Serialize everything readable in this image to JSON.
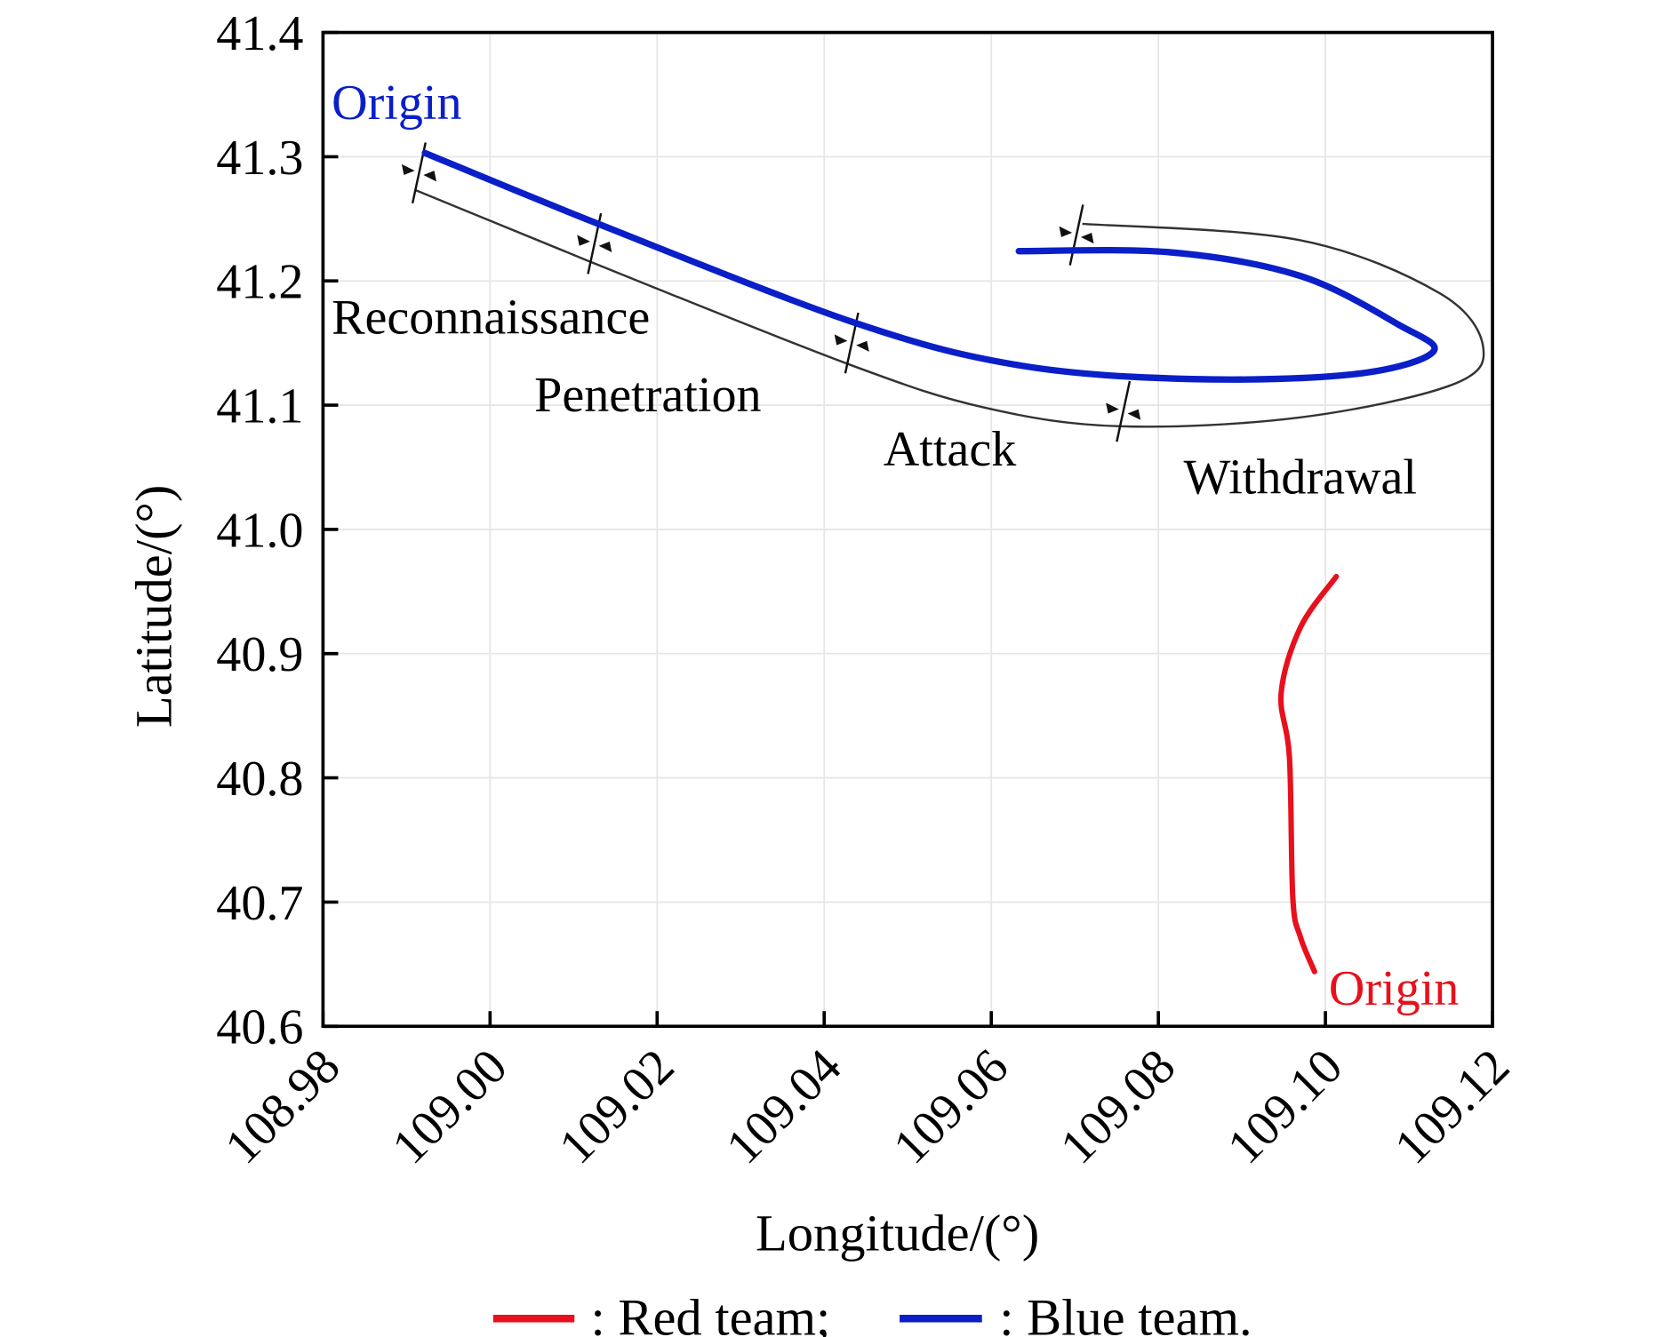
{
  "chart_data": {
    "type": "line",
    "title": "",
    "xlabel": "Longitude/(°)",
    "ylabel": "Latitude/(°)",
    "xlim": [
      108.98,
      109.12
    ],
    "ylim": [
      40.6,
      41.4
    ],
    "xticks": [
      "108.98",
      "109.00",
      "109.02",
      "109.04",
      "109.06",
      "109.08",
      "109.10",
      "109.12"
    ],
    "yticks": [
      "41.4",
      "41.3",
      "41.2",
      "41.1",
      "41.0",
      "40.9",
      "40.8",
      "40.7",
      "40.6"
    ],
    "grid": true,
    "colors": {
      "red": "#e8101c",
      "blue": "#0a1fc8",
      "annot": "#333333"
    },
    "series": [
      {
        "name": "Red team",
        "color": "#e8101c",
        "points": [
          [
            109.1013,
            40.962
          ],
          [
            109.097,
            40.921
          ],
          [
            109.0947,
            40.868
          ],
          [
            109.0957,
            40.816
          ],
          [
            109.0961,
            40.703
          ],
          [
            109.097,
            40.672
          ],
          [
            109.0987,
            40.644
          ]
        ]
      },
      {
        "name": "Blue team",
        "color": "#0a1fc8",
        "points": [
          [
            108.9922,
            41.303
          ],
          [
            109.0133,
            41.245
          ],
          [
            109.0438,
            41.166
          ],
          [
            109.0634,
            41.132
          ],
          [
            109.084,
            41.121
          ],
          [
            109.1035,
            41.125
          ],
          [
            109.1129,
            41.143
          ],
          [
            109.1087,
            41.165
          ],
          [
            109.097,
            41.204
          ],
          [
            109.0815,
            41.223
          ],
          [
            109.0633,
            41.224
          ]
        ]
      }
    ],
    "phase_arrow": [
      [
        108.9911,
        41.273
      ],
      [
        109.0118,
        41.216
      ],
      [
        109.0429,
        41.133
      ],
      [
        109.0592,
        41.098
      ],
      [
        109.0754,
        41.083
      ],
      [
        109.0968,
        41.09
      ],
      [
        109.115,
        41.116
      ],
      [
        109.1189,
        41.146
      ],
      [
        109.1137,
        41.19
      ],
      [
        109.0968,
        41.233
      ],
      [
        109.0709,
        41.246
      ]
    ],
    "phase_boundaries": [
      [
        108.9915,
        41.287
      ],
      [
        109.0125,
        41.23
      ],
      [
        109.0433,
        41.15
      ],
      [
        109.0758,
        41.095
      ],
      [
        109.0702,
        41.237
      ]
    ],
    "annotations": {
      "blue_origin": "Origin",
      "red_origin": "Origin",
      "phases": [
        "Reconnaissance",
        "Penetration",
        "Attack",
        "Withdrawal"
      ]
    },
    "legend": {
      "placement": "bottom",
      "red": ": Red team;",
      "blue": ": Blue team."
    }
  }
}
